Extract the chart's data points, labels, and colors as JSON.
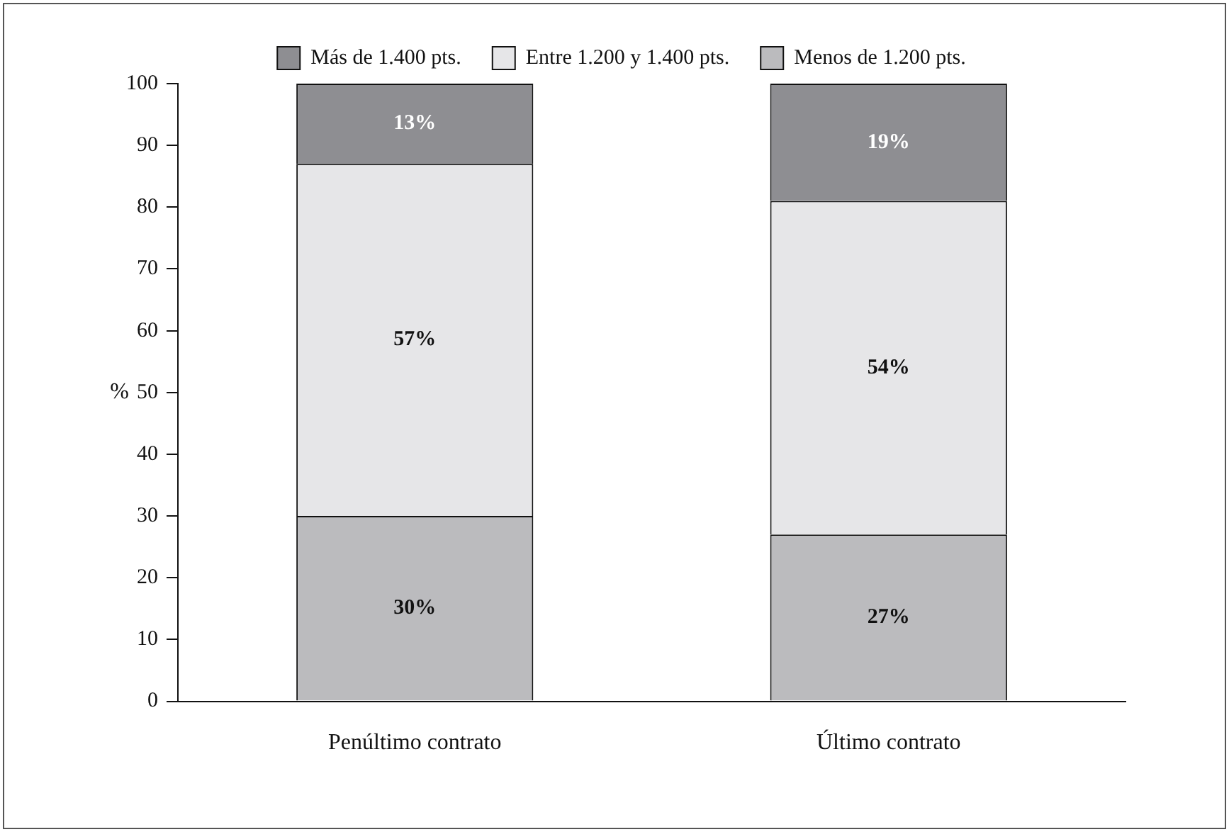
{
  "chart_data": {
    "type": "bar",
    "stacked": true,
    "ylabel": "%",
    "categories": [
      "Penúltimo contrato",
      "Último contrato"
    ],
    "series": [
      {
        "name": "Menos de 1.200 pts.",
        "color": "#bbbbbe",
        "values": [
          30,
          27
        ],
        "value_labels": [
          "30%",
          "27%"
        ]
      },
      {
        "name": "Entre 1.200 y 1.400 pts.",
        "color": "#e6e6e8",
        "values": [
          57,
          54
        ],
        "value_labels": [
          "57%",
          "54%"
        ]
      },
      {
        "name": "Más de 1.400 pts.",
        "color": "#8e8e92",
        "values": [
          13,
          19
        ],
        "value_labels": [
          "13%",
          "19%"
        ]
      }
    ],
    "ylim": [
      0,
      100
    ],
    "yticks": [
      0,
      10,
      20,
      30,
      40,
      50,
      60,
      70,
      80,
      90,
      100
    ],
    "grid": false,
    "legend": "top"
  }
}
